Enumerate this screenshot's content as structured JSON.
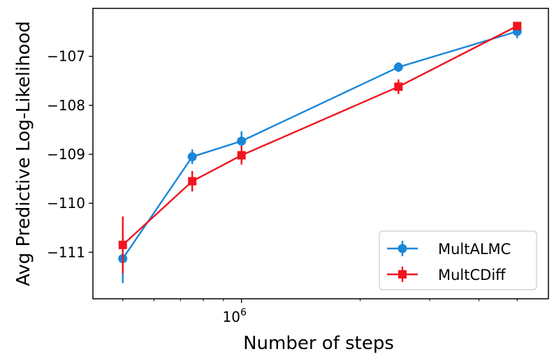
{
  "chart_data": {
    "type": "line",
    "xscale": "log",
    "xlabel": "Number of steps",
    "ylabel": "Avg Predictive Log-Likelihood",
    "xlim": [
      420000,
      6000000
    ],
    "ylim": [
      -111.95,
      -106.02
    ],
    "yticks": [
      -111,
      -110,
      -109,
      -108,
      -107
    ],
    "ytick_labels": [
      "−111",
      "−110",
      "−109",
      "−108",
      "−107"
    ],
    "xticks_major": [
      1000000
    ],
    "xtick_major_labels": [
      {
        "base": "10",
        "exp": "6"
      }
    ],
    "xticks_minor": [
      500000,
      600000,
      700000,
      800000,
      900000,
      2000000,
      3000000,
      4000000,
      5000000
    ],
    "legend_position": "lower right",
    "grid": false,
    "series": [
      {
        "name": "MultALMC",
        "color": "#1a86d8",
        "marker": "circle",
        "x": [
          500000,
          750000,
          1000000,
          2500000,
          5000000
        ],
        "y": [
          -111.13,
          -109.05,
          -108.73,
          -107.22,
          -106.49
        ],
        "yerr": [
          0.5,
          0.15,
          0.2,
          0.1,
          0.14
        ]
      },
      {
        "name": "MultCDiff",
        "color": "#f0141e",
        "marker": "square",
        "x": [
          500000,
          750000,
          1000000,
          2500000,
          5000000
        ],
        "y": [
          -110.85,
          -109.55,
          -109.02,
          -107.62,
          -106.38
        ],
        "yerr": [
          0.58,
          0.21,
          0.19,
          0.15,
          0.07
        ]
      }
    ]
  }
}
